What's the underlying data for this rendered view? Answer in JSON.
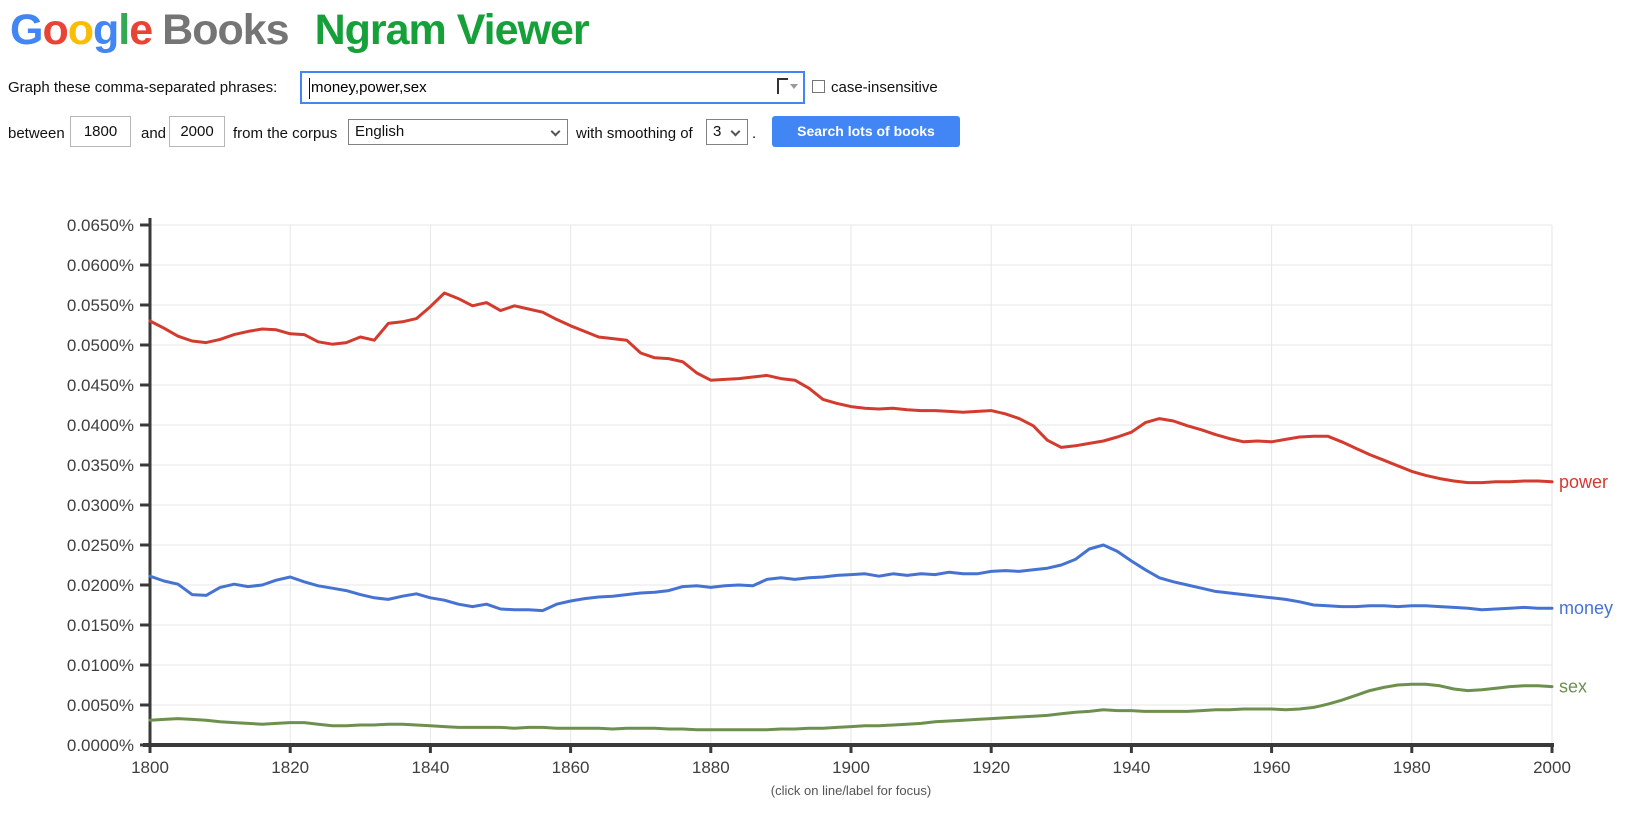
{
  "brand": {
    "google_letters": [
      [
        "G",
        "#4285F4"
      ],
      [
        "o",
        "#EA4335"
      ],
      [
        "o",
        "#FBBC05"
      ],
      [
        "g",
        "#4285F4"
      ],
      [
        "l",
        "#34A853"
      ],
      [
        "e",
        "#EA4335"
      ]
    ],
    "books_label": "Books",
    "books_color": "#757575",
    "title": "Ngram Viewer",
    "title_color": "#16A03A",
    "accent_blue": "#4285F4"
  },
  "form": {
    "phrase_label": "Graph these comma-separated phrases:",
    "phrase_value": "money,power,sex",
    "case_label": "case-insensitive",
    "case_checked": false,
    "between_label": "between",
    "year_from": "1800",
    "and_label": "and",
    "year_to": "2000",
    "corpus_label": "from the corpus",
    "corpus_value": "English",
    "smoothing_label": "with smoothing of",
    "smoothing_value": "3",
    "period": ".",
    "search_button": "Search lots of books"
  },
  "chart_data": {
    "type": "line",
    "title": "",
    "xlabel": "",
    "ylabel": "",
    "xlim": [
      1800,
      2000
    ],
    "ylim": [
      0,
      0.065
    ],
    "grid": true,
    "grid_color": "#e7e7e7",
    "axis_color": "#3a3a3a",
    "tick_label_color": "#3f3f3f",
    "legend_position": "right-end-of-line",
    "footnote": "(click on line/label for focus)",
    "x_tick_values": [
      1800,
      1820,
      1840,
      1860,
      1880,
      1900,
      1920,
      1940,
      1960,
      1980,
      2000
    ],
    "x_tick_labels": [
      "1800",
      "1820",
      "1840",
      "1860",
      "1880",
      "1900",
      "1920",
      "1940",
      "1960",
      "1980",
      "2000"
    ],
    "y_tick_values": [
      0,
      0.005,
      0.01,
      0.015,
      0.02,
      0.025,
      0.03,
      0.035,
      0.04,
      0.045,
      0.05,
      0.055,
      0.06,
      0.065
    ],
    "y_tick_labels": [
      "0.0000%",
      "0.0050%",
      "0.0100%",
      "0.0150%",
      "0.0200%",
      "0.0250%",
      "0.0300%",
      "0.0350%",
      "0.0400%",
      "0.0450%",
      "0.0500%",
      "0.0550%",
      "0.0600%",
      "0.0650%"
    ],
    "years": [
      1800,
      1802,
      1804,
      1806,
      1808,
      1810,
      1812,
      1814,
      1816,
      1818,
      1820,
      1822,
      1824,
      1826,
      1828,
      1830,
      1832,
      1834,
      1836,
      1838,
      1840,
      1842,
      1844,
      1846,
      1848,
      1850,
      1852,
      1854,
      1856,
      1858,
      1860,
      1862,
      1864,
      1866,
      1868,
      1870,
      1872,
      1874,
      1876,
      1878,
      1880,
      1882,
      1884,
      1886,
      1888,
      1890,
      1892,
      1894,
      1896,
      1898,
      1900,
      1902,
      1904,
      1906,
      1908,
      1910,
      1912,
      1914,
      1916,
      1918,
      1920,
      1922,
      1924,
      1926,
      1928,
      1930,
      1932,
      1934,
      1936,
      1938,
      1940,
      1942,
      1944,
      1946,
      1948,
      1950,
      1952,
      1954,
      1956,
      1958,
      1960,
      1962,
      1964,
      1966,
      1968,
      1970,
      1972,
      1974,
      1976,
      1978,
      1980,
      1982,
      1984,
      1986,
      1988,
      1990,
      1992,
      1994,
      1996,
      1998,
      2000
    ],
    "series": [
      {
        "name": "power",
        "color": "#d23b2d",
        "values": [
          0.053,
          0.0521,
          0.0511,
          0.0505,
          0.0503,
          0.0507,
          0.0513,
          0.0517,
          0.052,
          0.0519,
          0.0514,
          0.0513,
          0.0504,
          0.0501,
          0.0503,
          0.051,
          0.0506,
          0.0527,
          0.0529,
          0.0533,
          0.0548,
          0.0565,
          0.0558,
          0.0549,
          0.0553,
          0.0543,
          0.0549,
          0.0545,
          0.0541,
          0.0532,
          0.0524,
          0.0517,
          0.051,
          0.0508,
          0.0506,
          0.049,
          0.0484,
          0.0483,
          0.0479,
          0.0465,
          0.0456,
          0.0457,
          0.0458,
          0.046,
          0.0462,
          0.0458,
          0.0456,
          0.0446,
          0.0432,
          0.0427,
          0.0423,
          0.0421,
          0.042,
          0.0421,
          0.0419,
          0.0418,
          0.0418,
          0.0417,
          0.0416,
          0.0417,
          0.0418,
          0.0414,
          0.0408,
          0.0399,
          0.0381,
          0.0372,
          0.0374,
          0.0377,
          0.038,
          0.0385,
          0.0391,
          0.0403,
          0.0408,
          0.0405,
          0.0399,
          0.0394,
          0.0388,
          0.0383,
          0.0379,
          0.038,
          0.0379,
          0.0382,
          0.0385,
          0.0386,
          0.0386,
          0.0379,
          0.0371,
          0.0363,
          0.0356,
          0.0349,
          0.0342,
          0.0337,
          0.0333,
          0.033,
          0.0328,
          0.0328,
          0.0329,
          0.0329,
          0.033,
          0.033,
          0.0329
        ]
      },
      {
        "name": "money",
        "color": "#4673d2",
        "values": [
          0.0211,
          0.0205,
          0.0201,
          0.0188,
          0.0187,
          0.0197,
          0.0201,
          0.0198,
          0.02,
          0.0206,
          0.021,
          0.0204,
          0.0199,
          0.0196,
          0.0193,
          0.0188,
          0.0184,
          0.0182,
          0.0186,
          0.0189,
          0.0184,
          0.0181,
          0.0176,
          0.0173,
          0.0176,
          0.017,
          0.0169,
          0.0169,
          0.0168,
          0.0176,
          0.018,
          0.0183,
          0.0185,
          0.0186,
          0.0188,
          0.019,
          0.0191,
          0.0193,
          0.0198,
          0.0199,
          0.0197,
          0.0199,
          0.02,
          0.0199,
          0.0207,
          0.0209,
          0.0207,
          0.0209,
          0.021,
          0.0212,
          0.0213,
          0.0214,
          0.0211,
          0.0214,
          0.0212,
          0.0214,
          0.0213,
          0.0216,
          0.0214,
          0.0214,
          0.0217,
          0.0218,
          0.0217,
          0.0219,
          0.0221,
          0.0225,
          0.0232,
          0.0245,
          0.025,
          0.0242,
          0.023,
          0.0219,
          0.0209,
          0.0204,
          0.02,
          0.0196,
          0.0192,
          0.019,
          0.0188,
          0.0186,
          0.0184,
          0.0182,
          0.0179,
          0.0175,
          0.0174,
          0.0173,
          0.0173,
          0.0174,
          0.0174,
          0.0173,
          0.0174,
          0.0174,
          0.0173,
          0.0172,
          0.0171,
          0.0169,
          0.017,
          0.0171,
          0.0172,
          0.0171,
          0.0171
        ]
      },
      {
        "name": "sex",
        "color": "#6d904e",
        "values": [
          0.0031,
          0.0032,
          0.0033,
          0.0032,
          0.0031,
          0.0029,
          0.0028,
          0.0027,
          0.0026,
          0.0027,
          0.0028,
          0.0028,
          0.0026,
          0.0024,
          0.0024,
          0.0025,
          0.0025,
          0.0026,
          0.0026,
          0.0025,
          0.0024,
          0.0023,
          0.0022,
          0.0022,
          0.0022,
          0.0022,
          0.0021,
          0.0022,
          0.0022,
          0.0021,
          0.0021,
          0.0021,
          0.0021,
          0.002,
          0.0021,
          0.0021,
          0.0021,
          0.002,
          0.002,
          0.0019,
          0.0019,
          0.0019,
          0.0019,
          0.0019,
          0.0019,
          0.002,
          0.002,
          0.0021,
          0.0021,
          0.0022,
          0.0023,
          0.0024,
          0.0024,
          0.0025,
          0.0026,
          0.0027,
          0.0029,
          0.003,
          0.0031,
          0.0032,
          0.0033,
          0.0034,
          0.0035,
          0.0036,
          0.0037,
          0.0039,
          0.0041,
          0.0042,
          0.0044,
          0.0043,
          0.0043,
          0.0042,
          0.0042,
          0.0042,
          0.0042,
          0.0043,
          0.0044,
          0.0044,
          0.0045,
          0.0045,
          0.0045,
          0.0044,
          0.0045,
          0.0047,
          0.0051,
          0.0056,
          0.0062,
          0.0068,
          0.0072,
          0.0075,
          0.0076,
          0.0076,
          0.0074,
          0.007,
          0.0068,
          0.0069,
          0.0071,
          0.0073,
          0.0074,
          0.0074,
          0.0073
        ]
      }
    ]
  }
}
